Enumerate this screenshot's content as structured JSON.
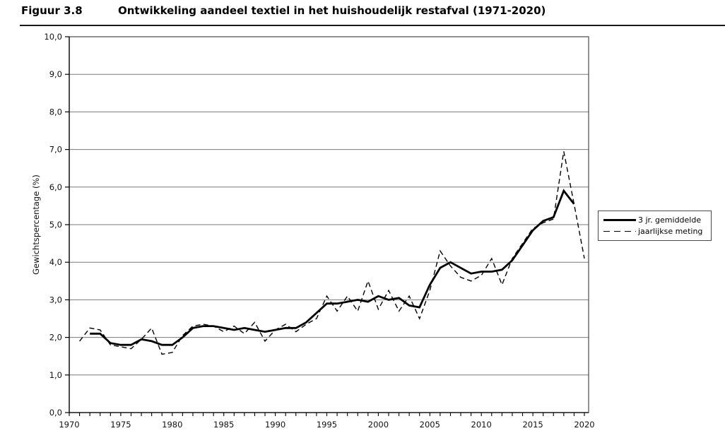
{
  "page": {
    "figure_label": "Figuur 3.8",
    "figure_title": "Ontwikkeling aandeel textiel in het huishoudelijk restafval (1971-2020)"
  },
  "colors": {
    "line": "#000000",
    "grid": "#7a7a7a",
    "border": "#4a4a4a",
    "axis": "#000000",
    "text": "#111111",
    "background": "#ffffff"
  },
  "chart_data": {
    "type": "line",
    "title": "Ontwikkeling aandeel textiel in het huishoudelijk restafval (1971-2020)",
    "xlabel": "",
    "ylabel": "Gewichtspercentage (%)",
    "xlim": [
      1970,
      2020
    ],
    "ylim": [
      0,
      10
    ],
    "grid": true,
    "x_tick_step": 5,
    "x_minor_tick_step": 1,
    "y_tick_step": 1,
    "x_tick_labels": [
      "1970",
      "1975",
      "1980",
      "1985",
      "1990",
      "1995",
      "2000",
      "2005",
      "2010",
      "2015",
      "2020"
    ],
    "y_tick_labels": [
      "0,0",
      "1,0",
      "2,0",
      "3,0",
      "4,0",
      "5,0",
      "6,0",
      "7,0",
      "8,0",
      "9,0",
      "10,0"
    ],
    "legend_position": "right-outside",
    "series": [
      {
        "name": "3 jr. gemiddelde",
        "style": "solid",
        "stroke_width": 2.8,
        "x": [
          1972,
          1973,
          1974,
          1975,
          1976,
          1977,
          1978,
          1979,
          1980,
          1981,
          1982,
          1983,
          1984,
          1985,
          1986,
          1987,
          1988,
          1989,
          1990,
          1991,
          1992,
          1993,
          1994,
          1995,
          1996,
          1997,
          1998,
          1999,
          2000,
          2001,
          2002,
          2003,
          2004,
          2005,
          2006,
          2007,
          2008,
          2009,
          2010,
          2011,
          2012,
          2013,
          2014,
          2015,
          2016,
          2017,
          2018,
          2019
        ],
        "values": [
          2.1,
          2.1,
          1.85,
          1.8,
          1.8,
          1.95,
          1.9,
          1.8,
          1.8,
          2.0,
          2.25,
          2.3,
          2.3,
          2.25,
          2.2,
          2.25,
          2.2,
          2.15,
          2.2,
          2.25,
          2.25,
          2.4,
          2.65,
          2.9,
          2.9,
          2.95,
          3.0,
          2.95,
          3.1,
          3.0,
          3.05,
          2.85,
          2.8,
          3.4,
          3.85,
          4.0,
          3.85,
          3.7,
          3.75,
          3.75,
          3.8,
          4.05,
          4.45,
          4.85,
          5.1,
          5.2,
          5.9,
          5.55
        ]
      },
      {
        "name": "jaarlijkse meting",
        "style": "dashed",
        "stroke_width": 1.4,
        "x": [
          1971,
          1972,
          1973,
          1974,
          1975,
          1976,
          1977,
          1978,
          1979,
          1980,
          1981,
          1982,
          1983,
          1984,
          1985,
          1986,
          1987,
          1988,
          1989,
          1990,
          1991,
          1992,
          1993,
          1994,
          1995,
          1996,
          1997,
          1998,
          1999,
          2000,
          2001,
          2002,
          2003,
          2004,
          2005,
          2006,
          2007,
          2008,
          2009,
          2010,
          2011,
          2012,
          2013,
          2014,
          2015,
          2016,
          2017,
          2018,
          2019,
          2020
        ],
        "values": [
          1.9,
          2.25,
          2.2,
          1.8,
          1.75,
          1.7,
          1.95,
          2.25,
          1.55,
          1.6,
          2.05,
          2.3,
          2.35,
          2.3,
          2.15,
          2.3,
          2.1,
          2.4,
          1.9,
          2.2,
          2.35,
          2.15,
          2.35,
          2.5,
          3.1,
          2.7,
          3.1,
          2.7,
          3.5,
          2.75,
          3.25,
          2.7,
          3.1,
          2.5,
          3.25,
          4.3,
          3.9,
          3.6,
          3.5,
          3.65,
          4.1,
          3.4,
          4.1,
          4.5,
          4.9,
          5.05,
          5.15,
          6.95,
          5.55,
          4.1
        ]
      }
    ]
  }
}
